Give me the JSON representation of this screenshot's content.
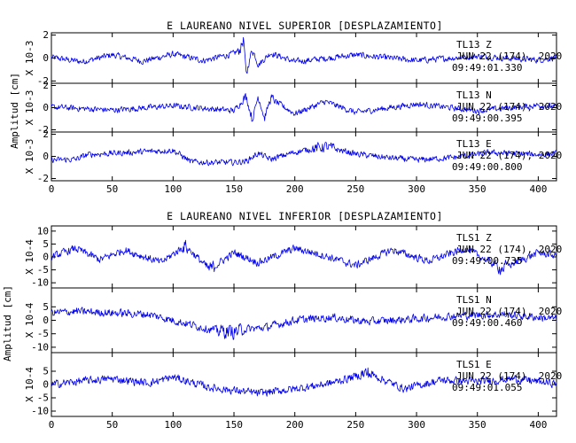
{
  "chart_data": [
    {
      "type": "line",
      "title": "E LAUREANO NIVEL SUPERIOR [DESPLAZAMIENTO]",
      "ylabel": "Amplitud [cm]",
      "xlim": [
        0,
        415
      ],
      "x_ticks": [
        "0",
        "50",
        "100",
        "150",
        "200",
        "250",
        "300",
        "350",
        "400"
      ],
      "trace_color": "#0000ee",
      "grid": false,
      "panels": [
        {
          "name": "TL13 Z",
          "station": "TL13",
          "component": "Z",
          "date": "JUN 22 (174), 2020",
          "time": "09:49:01.330",
          "scale_label": "X 10-3",
          "ylim": [
            -2.2,
            2.2
          ],
          "y_ticks": [
            "2",
            "0",
            "-2"
          ],
          "x": [
            0,
            25,
            50,
            75,
            100,
            125,
            150,
            155,
            158,
            160,
            165,
            170,
            180,
            200,
            250,
            300,
            350,
            400,
            415
          ],
          "y": [
            0.1,
            -0.6,
            0.5,
            -0.5,
            0.6,
            -0.4,
            0.7,
            1.4,
            3.0,
            -2.8,
            1.6,
            -1.1,
            0.8,
            -0.6,
            0.5,
            -0.4,
            0.3,
            -0.3,
            0.1
          ]
        },
        {
          "name": "TL13 N",
          "station": "TL13",
          "component": "N",
          "date": "JUN 22 (174), 2020",
          "time": "09:49:00.395",
          "scale_label": "X 10-3",
          "ylim": [
            -2.2,
            2.2
          ],
          "y_ticks": [
            "2",
            "0",
            "-2"
          ],
          "x": [
            0,
            50,
            100,
            150,
            160,
            165,
            170,
            175,
            180,
            200,
            225,
            250,
            300,
            350,
            400,
            415
          ],
          "y": [
            0.1,
            -0.4,
            0.3,
            -0.5,
            1.8,
            -2.0,
            2.0,
            -1.8,
            1.5,
            -1.0,
            1.0,
            -0.8,
            0.6,
            -0.5,
            0.4,
            0.1
          ]
        },
        {
          "name": "TL13 E",
          "station": "TL13",
          "component": "E",
          "date": "JUN 22 (174), 2020",
          "time": "09:49:00.800",
          "scale_label": "X 10-3",
          "ylim": [
            -2.2,
            2.2
          ],
          "y_ticks": [
            "2",
            "0",
            "-2"
          ],
          "x": [
            0,
            20,
            30,
            60,
            100,
            115,
            130,
            150,
            160,
            170,
            180,
            200,
            225,
            250,
            275,
            300,
            330,
            360,
            400,
            415
          ],
          "y": [
            -0.6,
            -0.5,
            0.3,
            0.6,
            1.0,
            -0.9,
            -1.0,
            -1.0,
            -0.8,
            0.5,
            -0.5,
            0.7,
            1.6,
            0.4,
            -0.2,
            -0.6,
            -0.2,
            0.6,
            0.3,
            0.5
          ]
        }
      ]
    },
    {
      "type": "line",
      "title": "E LAUREANO NIVEL INFERIOR [DESPLAZAMIENTO]",
      "ylabel": "Amplitud [cm]",
      "xlim": [
        0,
        415
      ],
      "x_ticks": [
        "0",
        "50",
        "100",
        "150",
        "200",
        "250",
        "300",
        "350",
        "400"
      ],
      "trace_color": "#0000ee",
      "grid": false,
      "panels": [
        {
          "name": "TLS1 Z",
          "station": "TLS1",
          "component": "Z",
          "date": "JUN 22 (174), 2020",
          "time": "09:49:00.735",
          "scale_label": "X 10-4",
          "ylim": [
            -12,
            12
          ],
          "y_ticks": [
            "10",
            "5",
            "0",
            "-5",
            "-10"
          ],
          "x": [
            0,
            20,
            40,
            60,
            90,
            110,
            130,
            150,
            170,
            200,
            220,
            250,
            280,
            310,
            340,
            370,
            400,
            415
          ],
          "y": [
            0,
            6,
            -2,
            5,
            -4,
            8,
            -9,
            3,
            -4,
            6,
            2,
            -6,
            5,
            -3,
            6,
            -8,
            3,
            1
          ]
        },
        {
          "name": "TLS1 N",
          "station": "TLS1",
          "component": "N",
          "date": "JUN 22 (174), 2020",
          "time": "09:49:00.460",
          "scale_label": "X 10-4",
          "ylim": [
            -12,
            12
          ],
          "y_ticks": [
            "5",
            "0",
            "-5",
            "-10"
          ],
          "x": [
            0,
            20,
            50,
            80,
            110,
            130,
            150,
            160,
            175,
            200,
            230,
            260,
            300,
            330,
            370,
            400,
            415
          ],
          "y": [
            5,
            6,
            5,
            4,
            -2,
            -6,
            -8,
            -6,
            -5,
            0,
            2,
            -1,
            1,
            3,
            4,
            2,
            1
          ]
        },
        {
          "name": "TLS1 E",
          "station": "TLS1",
          "component": "E",
          "date": "JUN 22 (174), 2020",
          "time": "09:49:01.055",
          "scale_label": "X 10-4",
          "ylim": [
            -12,
            12
          ],
          "y_ticks": [
            "5",
            "0",
            "-5",
            "-10"
          ],
          "x": [
            0,
            20,
            50,
            80,
            100,
            130,
            150,
            170,
            200,
            230,
            260,
            290,
            320,
            350,
            380,
            410,
            415
          ],
          "y": [
            0,
            2,
            4,
            1,
            5,
            -2,
            -4,
            -6,
            -3,
            1,
            8,
            -3,
            3,
            2,
            4,
            1,
            1
          ]
        }
      ]
    }
  ]
}
